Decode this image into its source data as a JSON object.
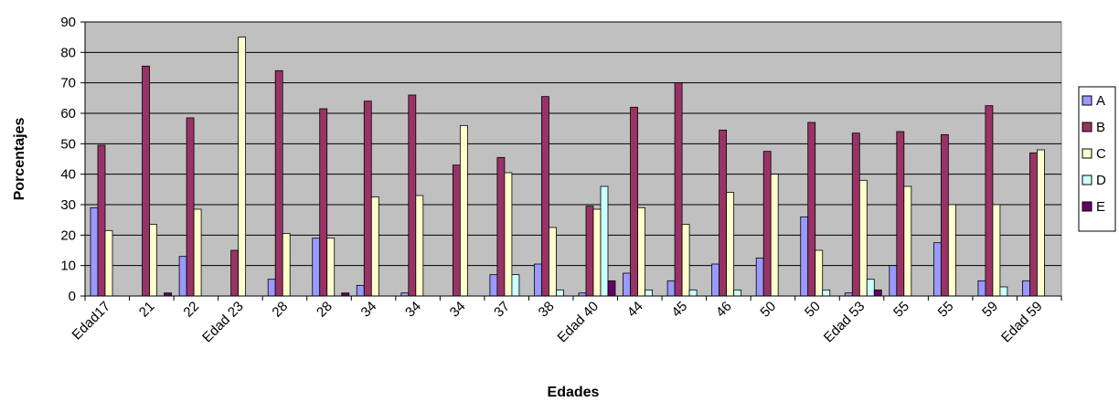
{
  "chart_data": {
    "type": "bar",
    "title": "",
    "xlabel": "Edades",
    "ylabel": "Porcentajes",
    "ylim": [
      0,
      90
    ],
    "yticks": [
      0,
      10,
      20,
      30,
      40,
      50,
      60,
      70,
      80,
      90
    ],
    "grid": true,
    "legend_position": "right",
    "plot_background": "#c0c0c0",
    "categories": [
      "Edad17",
      "21",
      "22",
      "Edad 23",
      "28",
      "28",
      "34",
      "34",
      "34",
      "37",
      "38",
      "Edad 40",
      "44",
      "45",
      "46",
      "50",
      "50",
      "Edad 53",
      "55",
      "55",
      "59",
      "Edad 59"
    ],
    "series": [
      {
        "name": "A",
        "color": "#9999ff",
        "values": [
          29,
          0,
          13,
          0,
          5.5,
          19,
          3.5,
          1,
          0,
          7,
          10.5,
          1,
          7.5,
          5,
          10.5,
          12.5,
          26,
          1,
          10,
          17.5,
          5,
          5
        ]
      },
      {
        "name": "B",
        "color": "#993366",
        "values": [
          49.5,
          75.5,
          58.5,
          15,
          74,
          61.5,
          64,
          66,
          43,
          45.5,
          65.5,
          29.5,
          62,
          70,
          54.5,
          47.5,
          57,
          53.5,
          54,
          53,
          62.5,
          47
        ]
      },
      {
        "name": "C",
        "color": "#ffffcc",
        "values": [
          21.5,
          23.5,
          28.5,
          85,
          20.5,
          19,
          32.5,
          33,
          56,
          40.5,
          22.5,
          28.5,
          29,
          23.5,
          34,
          40,
          15,
          38,
          36,
          30,
          30,
          48
        ]
      },
      {
        "name": "D",
        "color": "#ccffff",
        "values": [
          0,
          0,
          0,
          0,
          0,
          0,
          0,
          0,
          0,
          7,
          2,
          36,
          2,
          2,
          2,
          0,
          2,
          5.5,
          0,
          0,
          3,
          0
        ]
      },
      {
        "name": "E",
        "color": "#660066",
        "values": [
          0,
          1,
          0,
          0,
          0,
          1,
          0,
          0,
          0,
          0,
          0,
          5,
          0,
          0,
          0,
          0,
          0,
          2,
          0,
          0,
          0,
          0
        ]
      }
    ]
  }
}
